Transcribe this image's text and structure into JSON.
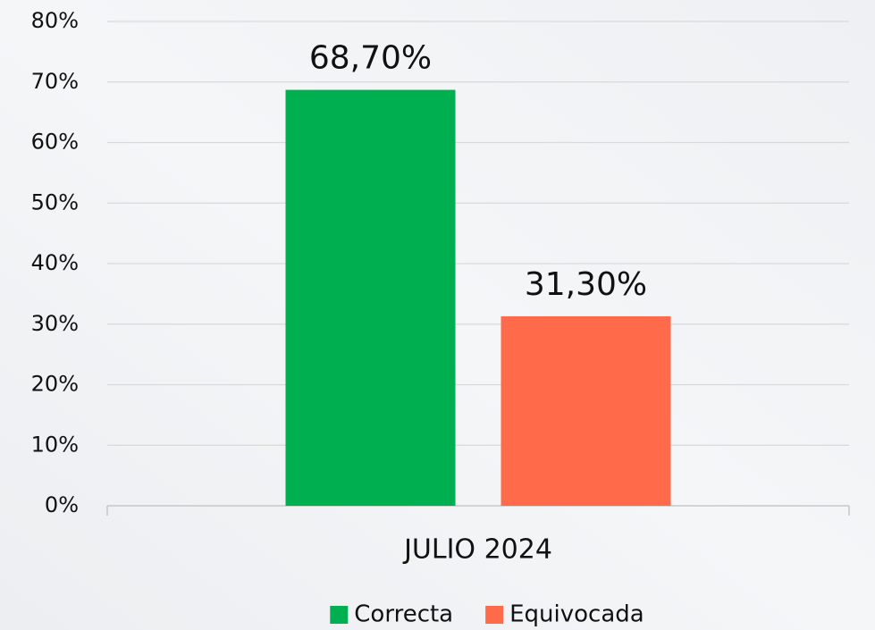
{
  "chart_data": {
    "type": "bar",
    "categories": [
      "JULIO 2024"
    ],
    "series": [
      {
        "name": "Correcta",
        "color": "#00b050",
        "values": [
          68.7
        ],
        "value_labels": [
          "68,70%"
        ]
      },
      {
        "name": "Equivocada",
        "color": "#ff6b4a",
        "values": [
          31.3
        ],
        "value_labels": [
          "31,30%"
        ]
      }
    ],
    "ylim": [
      0,
      80
    ],
    "yticks": [
      {
        "value": 0,
        "label": "0%"
      },
      {
        "value": 10,
        "label": "10%"
      },
      {
        "value": 20,
        "label": "20%"
      },
      {
        "value": 30,
        "label": "30%"
      },
      {
        "value": 40,
        "label": "40%"
      },
      {
        "value": 50,
        "label": "50%"
      },
      {
        "value": 60,
        "label": "60%"
      },
      {
        "value": 70,
        "label": "70%"
      },
      {
        "value": 80,
        "label": "80%"
      }
    ],
    "grid": true,
    "legend": "bottom"
  }
}
